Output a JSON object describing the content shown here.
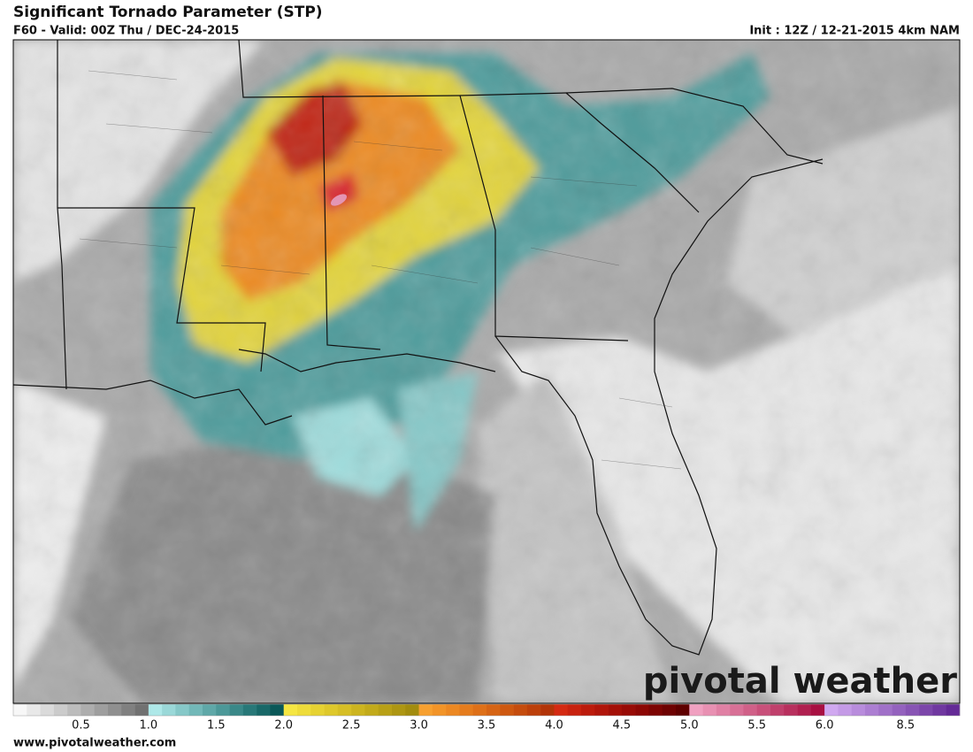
{
  "header": {
    "title": "Significant Tornado Parameter (STP)",
    "subtitle": "F60 - Valid: 00Z Thu / DEC-24-2015",
    "init": "Init : 12Z / 12-21-2015 4km NAM"
  },
  "colorbar": {
    "labels": [
      "0.5",
      "1.0",
      "1.5",
      "2.0",
      "2.5",
      "3.0",
      "3.5",
      "4.0",
      "4.5",
      "5.0",
      "5.5",
      "6.0",
      "8.5"
    ],
    "colors": [
      "#f7f7f7",
      "#e8e8e8",
      "#dadada",
      "#cbcbcb",
      "#bcbcbc",
      "#adadad",
      "#9e9e9e",
      "#8f8f8f",
      "#808080",
      "#717171",
      "#aee8e8",
      "#9ad8d8",
      "#86c8c8",
      "#72b8b8",
      "#5fa8a8",
      "#4c9898",
      "#3a8888",
      "#287878",
      "#186868",
      "#0a5858",
      "#f5e642",
      "#eedc3a",
      "#e6d232",
      "#dec82b",
      "#d6be25",
      "#ccb41f",
      "#c2aa1a",
      "#b8a016",
      "#ad9612",
      "#a28c0e",
      "#f7a030",
      "#f29428",
      "#ec8822",
      "#e57c1d",
      "#de7018",
      "#d66414",
      "#ce5810",
      "#c54c0d",
      "#bc400a",
      "#b23408",
      "#d42a12",
      "#c8220f",
      "#bc1b0c",
      "#b0150a",
      "#a41008",
      "#980b06",
      "#8c0704",
      "#7d0403",
      "#6e0202",
      "#5f0000",
      "#f0a0c0",
      "#e890b2",
      "#e080a4",
      "#d87096",
      "#d06088",
      "#c8507a",
      "#c0406c",
      "#b8305e",
      "#b02050",
      "#a81042",
      "#d0a8f0",
      "#c49ae6",
      "#b88cdc",
      "#ac7ed2",
      "#a070c8",
      "#9462be",
      "#8854b4",
      "#7c46aa",
      "#7038a0",
      "#642a96"
    ]
  },
  "logo": "pivotal weather",
  "footer": {
    "url": "www.pivotalweather.com"
  }
}
